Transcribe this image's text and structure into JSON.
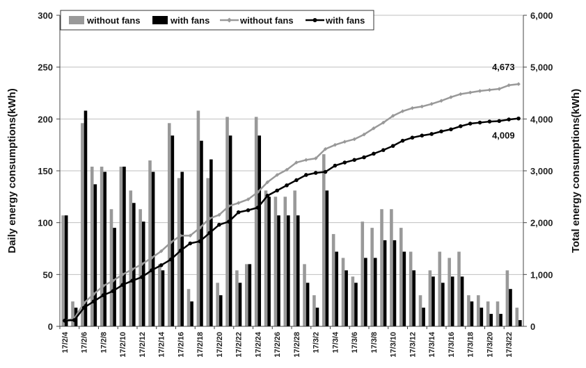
{
  "chart_data": {
    "type": "bar+line",
    "title": "",
    "xlabel": "",
    "ylabel_left": "Daily energy consumptions(kWh)",
    "ylabel_right": "Total energy consumptions(kWh)",
    "ylim_left": [
      0,
      300
    ],
    "ylim_right": [
      0,
      6000
    ],
    "yticks_left": [
      "0",
      "50",
      "100",
      "150",
      "200",
      "250",
      "300"
    ],
    "yticks_right": [
      "0",
      "1,000",
      "2,000",
      "3,000",
      "4,000",
      "5,000",
      "6,000"
    ],
    "grid": "horizontal",
    "legend_position": "top",
    "x_tick_labels": [
      "17/2/4",
      "17/2/6",
      "17/2/8",
      "17/2/10",
      "17/2/12",
      "17/2/14",
      "17/2/16",
      "17/2/18",
      "17/2/20",
      "17/2/22",
      "17/2/24",
      "17/2/26",
      "17/2/28",
      "17/3/2",
      "17/3/4",
      "17/3/6",
      "17/3/8",
      "17/3/10",
      "17/3/12",
      "17/3/14",
      "17/3/16",
      "17/3/18",
      "17/3/20",
      "17/3/22"
    ],
    "x": [
      "17/2/4",
      "17/2/5",
      "17/2/6",
      "17/2/7",
      "17/2/8",
      "17/2/9",
      "17/2/10",
      "17/2/11",
      "17/2/12",
      "17/2/13",
      "17/2/14",
      "17/2/15",
      "17/2/16",
      "17/2/17",
      "17/2/18",
      "17/2/19",
      "17/2/20",
      "17/2/21",
      "17/2/22",
      "17/2/23",
      "17/2/24",
      "17/2/25",
      "17/2/26",
      "17/2/27",
      "17/2/28",
      "17/3/1",
      "17/3/2",
      "17/3/3",
      "17/3/4",
      "17/3/5",
      "17/3/6",
      "17/3/7",
      "17/3/8",
      "17/3/9",
      "17/3/10",
      "17/3/11",
      "17/3/12",
      "17/3/13",
      "17/3/14",
      "17/3/15",
      "17/3/16",
      "17/3/17",
      "17/3/18",
      "17/3/19",
      "17/3/20",
      "17/3/21",
      "17/3/22",
      "17/3/23"
    ],
    "series": [
      {
        "name": "without fans",
        "kind": "bar",
        "axis": "left",
        "color": "#999999",
        "values": [
          107,
          24,
          196,
          154,
          154,
          113,
          154,
          131,
          113,
          160,
          60,
          196,
          143,
          36,
          208,
          143,
          42,
          202,
          54,
          60,
          202,
          131,
          125,
          125,
          131,
          60,
          30,
          166,
          89,
          66,
          48,
          101,
          95,
          113,
          113,
          95,
          72,
          30,
          54,
          72,
          66,
          72,
          30,
          30,
          24,
          24,
          54,
          18
        ]
      },
      {
        "name": "with fans",
        "kind": "bar",
        "axis": "left",
        "color": "#000000",
        "values": [
          107,
          18,
          208,
          137,
          149,
          95,
          154,
          119,
          101,
          149,
          54,
          184,
          149,
          24,
          179,
          161,
          30,
          184,
          42,
          60,
          184,
          125,
          107,
          107,
          107,
          42,
          18,
          131,
          72,
          54,
          42,
          66,
          66,
          83,
          83,
          72,
          54,
          18,
          48,
          42,
          48,
          48,
          24,
          18,
          12,
          12,
          36,
          6
        ]
      },
      {
        "name": "without fans",
        "kind": "line",
        "axis": "right",
        "color": "#999999",
        "marker": "diamond",
        "values": [
          110,
          150,
          450,
          620,
          780,
          880,
          1000,
          1100,
          1200,
          1320,
          1450,
          1620,
          1750,
          1750,
          1900,
          2080,
          2150,
          2320,
          2380,
          2450,
          2590,
          2780,
          2920,
          3020,
          3160,
          3210,
          3240,
          3420,
          3500,
          3560,
          3610,
          3700,
          3820,
          3930,
          4060,
          4150,
          4210,
          4240,
          4290,
          4350,
          4420,
          4480,
          4510,
          4540,
          4560,
          4580,
          4650,
          4673
        ]
      },
      {
        "name": "with fans",
        "kind": "line",
        "axis": "right",
        "color": "#000000",
        "marker": "circle",
        "values": [
          110,
          120,
          360,
          480,
          600,
          680,
          800,
          880,
          950,
          1080,
          1180,
          1290,
          1460,
          1600,
          1640,
          1800,
          1960,
          2020,
          2200,
          2240,
          2290,
          2520,
          2620,
          2720,
          2820,
          2920,
          2960,
          2980,
          3100,
          3160,
          3210,
          3260,
          3330,
          3400,
          3480,
          3580,
          3640,
          3680,
          3710,
          3760,
          3800,
          3860,
          3910,
          3930,
          3950,
          3960,
          3990,
          4009
        ]
      }
    ],
    "annotations": [
      {
        "text": "4,673",
        "series": 2,
        "index": 47
      },
      {
        "text": "4,009",
        "series": 3,
        "index": 47
      }
    ]
  }
}
